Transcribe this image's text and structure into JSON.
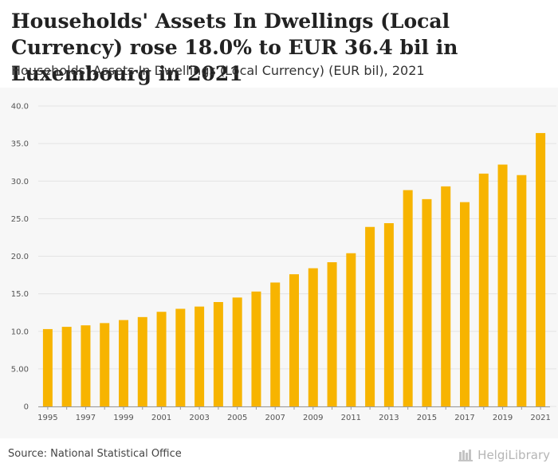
{
  "header": {
    "title": "Households' Assets In Dwellings (Local Currency) rose 18.0% to EUR 36.4 bil in Luxembourg in 2021",
    "subtitle": "Households' Assets In Dwellings (Local Currency) (EUR bil), 2021"
  },
  "footer": {
    "source": "Source: National Statistical Office",
    "logo_text": "HelgiLibrary"
  },
  "colors": {
    "bar": "#F7B400",
    "grid": "#e4e4e4",
    "axis_text": "#555555"
  },
  "chart_data": {
    "type": "bar",
    "title": "Households' Assets In Dwellings (Local Currency) (EUR bil)",
    "xlabel": "",
    "ylabel": "",
    "ylim": [
      0,
      40
    ],
    "yticks": [
      0,
      5,
      10,
      15,
      20,
      25,
      30,
      35,
      40
    ],
    "ytick_labels": [
      "0",
      "5.00",
      "10.0",
      "15.0",
      "20.0",
      "25.0",
      "30.0",
      "35.0",
      "40.0"
    ],
    "categories": [
      1995,
      1996,
      1997,
      1998,
      1999,
      2000,
      2001,
      2002,
      2003,
      2004,
      2005,
      2006,
      2007,
      2008,
      2009,
      2010,
      2011,
      2012,
      2013,
      2014,
      2015,
      2016,
      2017,
      2018,
      2019,
      2020,
      2021
    ],
    "xtick_labels": [
      "1995",
      "1997",
      "1999",
      "2001",
      "2003",
      "2005",
      "2007",
      "2009",
      "2011",
      "2013",
      "2015",
      "2017",
      "2019",
      "2021"
    ],
    "values": [
      10.3,
      10.6,
      10.8,
      11.1,
      11.5,
      11.9,
      12.6,
      13.0,
      13.3,
      13.9,
      14.5,
      15.3,
      16.5,
      17.6,
      18.4,
      19.2,
      20.4,
      23.9,
      24.4,
      28.8,
      27.6,
      29.3,
      27.2,
      31.0,
      32.2,
      30.8,
      36.4
    ]
  }
}
